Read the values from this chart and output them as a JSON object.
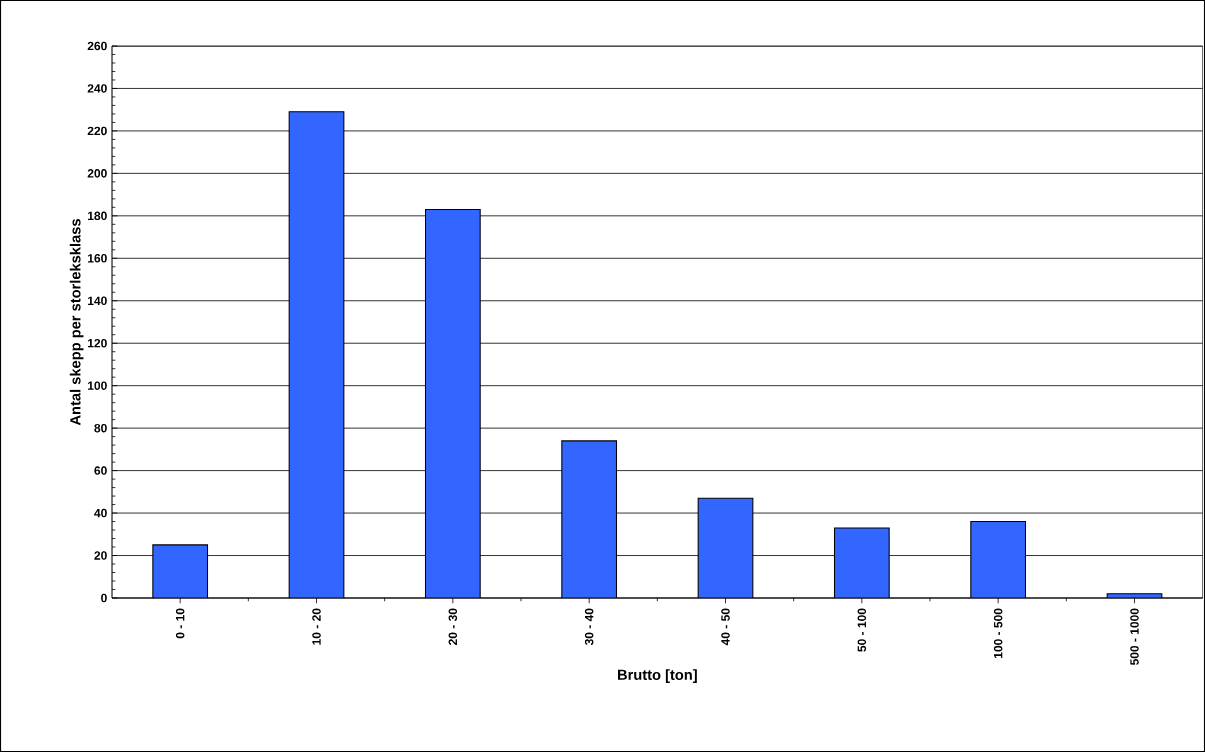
{
  "chart_data": {
    "type": "bar",
    "xlabel": "Brutto [ton]",
    "ylabel": "Antal skepp per storleksklass",
    "categories": [
      "0 - 10",
      "10 - 20",
      "20 - 30",
      "30 - 40",
      "40 - 50",
      "50 - 100",
      "100 - 500",
      "500 - 1000"
    ],
    "values": [
      25,
      229,
      183,
      74,
      47,
      33,
      36,
      2
    ],
    "color": "#3366ff",
    "ylim": [
      0,
      260
    ],
    "yticks": [
      0,
      20,
      40,
      60,
      80,
      100,
      120,
      140,
      160,
      180,
      200,
      220,
      240,
      260
    ],
    "grid": "y"
  }
}
